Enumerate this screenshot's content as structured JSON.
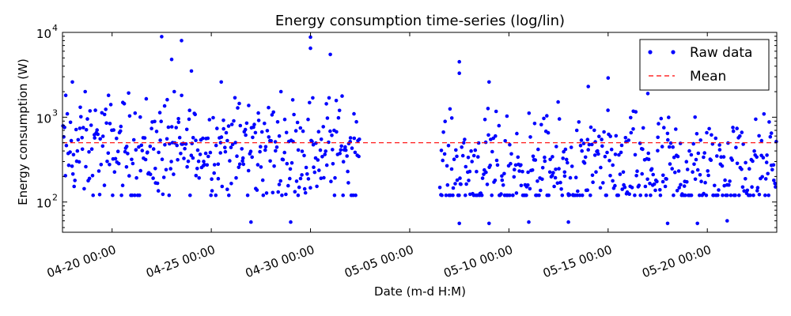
{
  "chart_data": {
    "type": "scatter",
    "title": "Energy consumption time-series (log/lin)",
    "xlabel": "Date (m-d H:M)",
    "ylabel": "Energy consumption (W)",
    "yscale": "log",
    "xlim": [
      "04-17 12:00",
      "05-23 12:00"
    ],
    "ylim": [
      44,
      10000
    ],
    "x_ticks": [
      "04-20 00:00",
      "04-25 00:00",
      "04-30 00:00",
      "05-05 00:00",
      "05-10 00:00",
      "05-15 00:00",
      "05-20 00:00"
    ],
    "y_ticks": [
      {
        "value": 100,
        "base": "10",
        "exp": "2"
      },
      {
        "value": 1000,
        "base": "10",
        "exp": "3"
      },
      {
        "value": 10000,
        "base": "10",
        "exp": "4"
      }
    ],
    "legend_position": "top-right",
    "series": [
      {
        "name": "Raw data",
        "style": "points",
        "color": "#0000ff",
        "segments": [
          {
            "start": "04-17 12:00",
            "end": "05-02 12:00",
            "level": 420
          },
          {
            "start": "05-06 12:00",
            "end": "05-23 12:00",
            "level": 230
          }
        ],
        "peaks": [
          {
            "x": "04-18 00:00",
            "y": 2600
          },
          {
            "x": "04-22 12:00",
            "y": 8900
          },
          {
            "x": "04-23 00:00",
            "y": 4800
          },
          {
            "x": "04-23 12:00",
            "y": 8000
          },
          {
            "x": "04-24 00:00",
            "y": 3500
          },
          {
            "x": "04-25 12:00",
            "y": 2600
          },
          {
            "x": "04-30 00:00",
            "y": 8800
          },
          {
            "x": "04-30 00:00",
            "y": 6500
          },
          {
            "x": "05-01 00:00",
            "y": 5500
          },
          {
            "x": "05-07 12:00",
            "y": 4500
          },
          {
            "x": "05-07 12:00",
            "y": 3300
          },
          {
            "x": "05-09 00:00",
            "y": 2600
          },
          {
            "x": "05-14 00:00",
            "y": 2300
          },
          {
            "x": "05-15 00:00",
            "y": 2900
          },
          {
            "x": "05-17 00:00",
            "y": 1900
          },
          {
            "x": "05-22 12:00",
            "y": 2200
          }
        ],
        "lows": [
          {
            "x": "04-27 00:00",
            "y": 58
          },
          {
            "x": "04-29 00:00",
            "y": 58
          },
          {
            "x": "05-07 12:00",
            "y": 56
          },
          {
            "x": "05-09 00:00",
            "y": 56
          },
          {
            "x": "05-11 00:00",
            "y": 58
          },
          {
            "x": "05-13 00:00",
            "y": 58
          },
          {
            "x": "05-18 00:00",
            "y": 56
          },
          {
            "x": "05-19 12:00",
            "y": 56
          },
          {
            "x": "05-21 00:00",
            "y": 60
          }
        ]
      },
      {
        "name": "Mean",
        "style": "dashed-line",
        "color": "#ff0000",
        "value": 500
      }
    ],
    "grid": false
  }
}
